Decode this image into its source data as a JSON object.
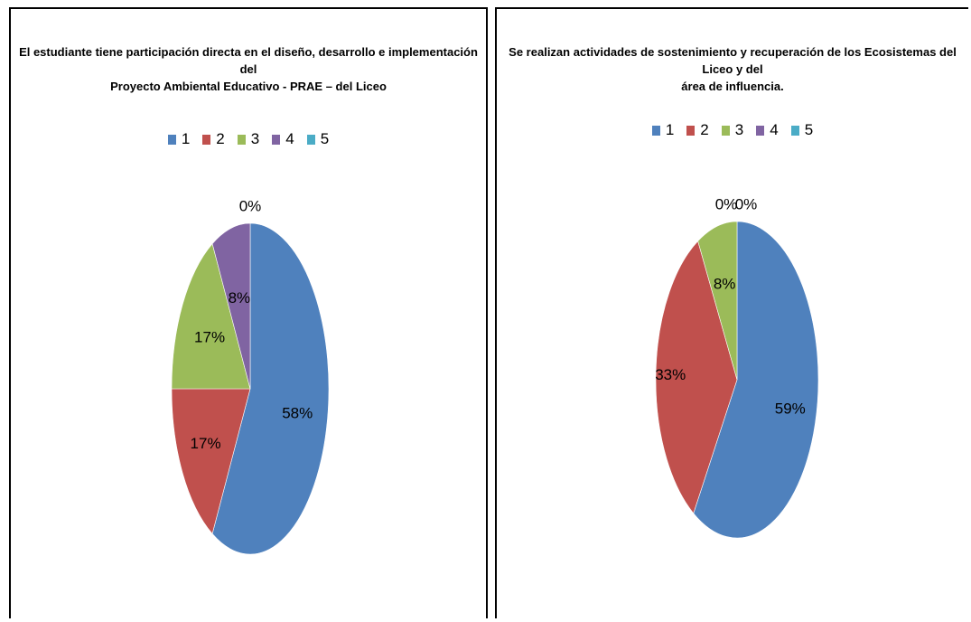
{
  "chart_data": [
    {
      "type": "pie",
      "title": "El estudiante tiene participación directa en el diseño, desarrollo e implementación del Proyecto Ambiental  Educativo - PRAE – del Liceo",
      "title_lines": [
        "El estudiante tiene participación directa en el diseño, desarrollo e implementación del",
        "Proyecto Ambiental  Educativo - PRAE – del Liceo"
      ],
      "categories": [
        "1",
        "2",
        "3",
        "4",
        "5"
      ],
      "values": [
        58,
        17,
        17,
        8,
        0
      ],
      "labels": [
        "58%",
        "17%",
        "17%",
        "8%",
        "0%"
      ],
      "legend_position": "top",
      "colors": [
        "#4F81BD",
        "#C0504D",
        "#9BBB59",
        "#8064A2",
        "#4BACC6"
      ]
    },
    {
      "type": "pie",
      "title": "Se realizan actividades de sostenimiento y recuperación de los Ecosistemas del Liceo y del área de influencia.",
      "title_lines": [
        "Se realizan actividades de sostenimiento y recuperación de los Ecosistemas del Liceo y del",
        "área de influencia."
      ],
      "categories": [
        "1",
        "2",
        "3",
        "4",
        "5"
      ],
      "values": [
        59,
        33,
        8,
        0,
        0
      ],
      "labels": [
        "59%",
        "33%",
        "8%",
        "0%",
        "0%"
      ],
      "legend_position": "top",
      "colors": [
        "#4F81BD",
        "#C0504D",
        "#9BBB59",
        "#8064A2",
        "#4BACC6"
      ]
    }
  ]
}
